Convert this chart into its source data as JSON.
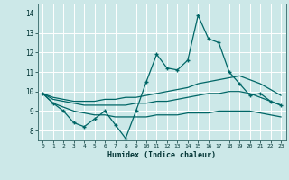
{
  "xlabel": "Humidex (Indice chaleur)",
  "background_color": "#cce8e8",
  "grid_color": "#b0d8d8",
  "line_color": "#006666",
  "x": [
    0,
    1,
    2,
    3,
    4,
    5,
    6,
    7,
    8,
    9,
    10,
    11,
    12,
    13,
    14,
    15,
    16,
    17,
    18,
    19,
    20,
    21,
    22,
    23
  ],
  "y_main": [
    9.9,
    9.4,
    9.0,
    8.4,
    8.2,
    8.6,
    9.0,
    8.3,
    7.6,
    9.0,
    10.5,
    11.9,
    11.2,
    11.1,
    11.6,
    13.9,
    12.7,
    12.5,
    11.0,
    10.4,
    9.8,
    9.9,
    9.5,
    9.3
  ],
  "y_upper": [
    9.9,
    9.7,
    9.6,
    9.5,
    9.5,
    9.5,
    9.6,
    9.6,
    9.7,
    9.7,
    9.8,
    9.9,
    10.0,
    10.1,
    10.2,
    10.4,
    10.5,
    10.6,
    10.7,
    10.8,
    10.6,
    10.4,
    10.1,
    9.8
  ],
  "y_mid": [
    9.9,
    9.6,
    9.5,
    9.4,
    9.3,
    9.3,
    9.3,
    9.3,
    9.3,
    9.4,
    9.4,
    9.5,
    9.5,
    9.6,
    9.7,
    9.8,
    9.9,
    9.9,
    10.0,
    10.0,
    9.9,
    9.7,
    9.5,
    9.3
  ],
  "y_lower": [
    9.9,
    9.4,
    9.2,
    9.0,
    8.9,
    8.8,
    8.8,
    8.7,
    8.7,
    8.7,
    8.7,
    8.8,
    8.8,
    8.8,
    8.9,
    8.9,
    8.9,
    9.0,
    9.0,
    9.0,
    9.0,
    8.9,
    8.8,
    8.7
  ],
  "ylim": [
    7.5,
    14.5
  ],
  "xlim": [
    -0.5,
    23.5
  ],
  "yticks": [
    8,
    9,
    10,
    11,
    12,
    13,
    14
  ],
  "xticks": [
    0,
    1,
    2,
    3,
    4,
    5,
    6,
    7,
    8,
    9,
    10,
    11,
    12,
    13,
    14,
    15,
    16,
    17,
    18,
    19,
    20,
    21,
    22,
    23
  ]
}
